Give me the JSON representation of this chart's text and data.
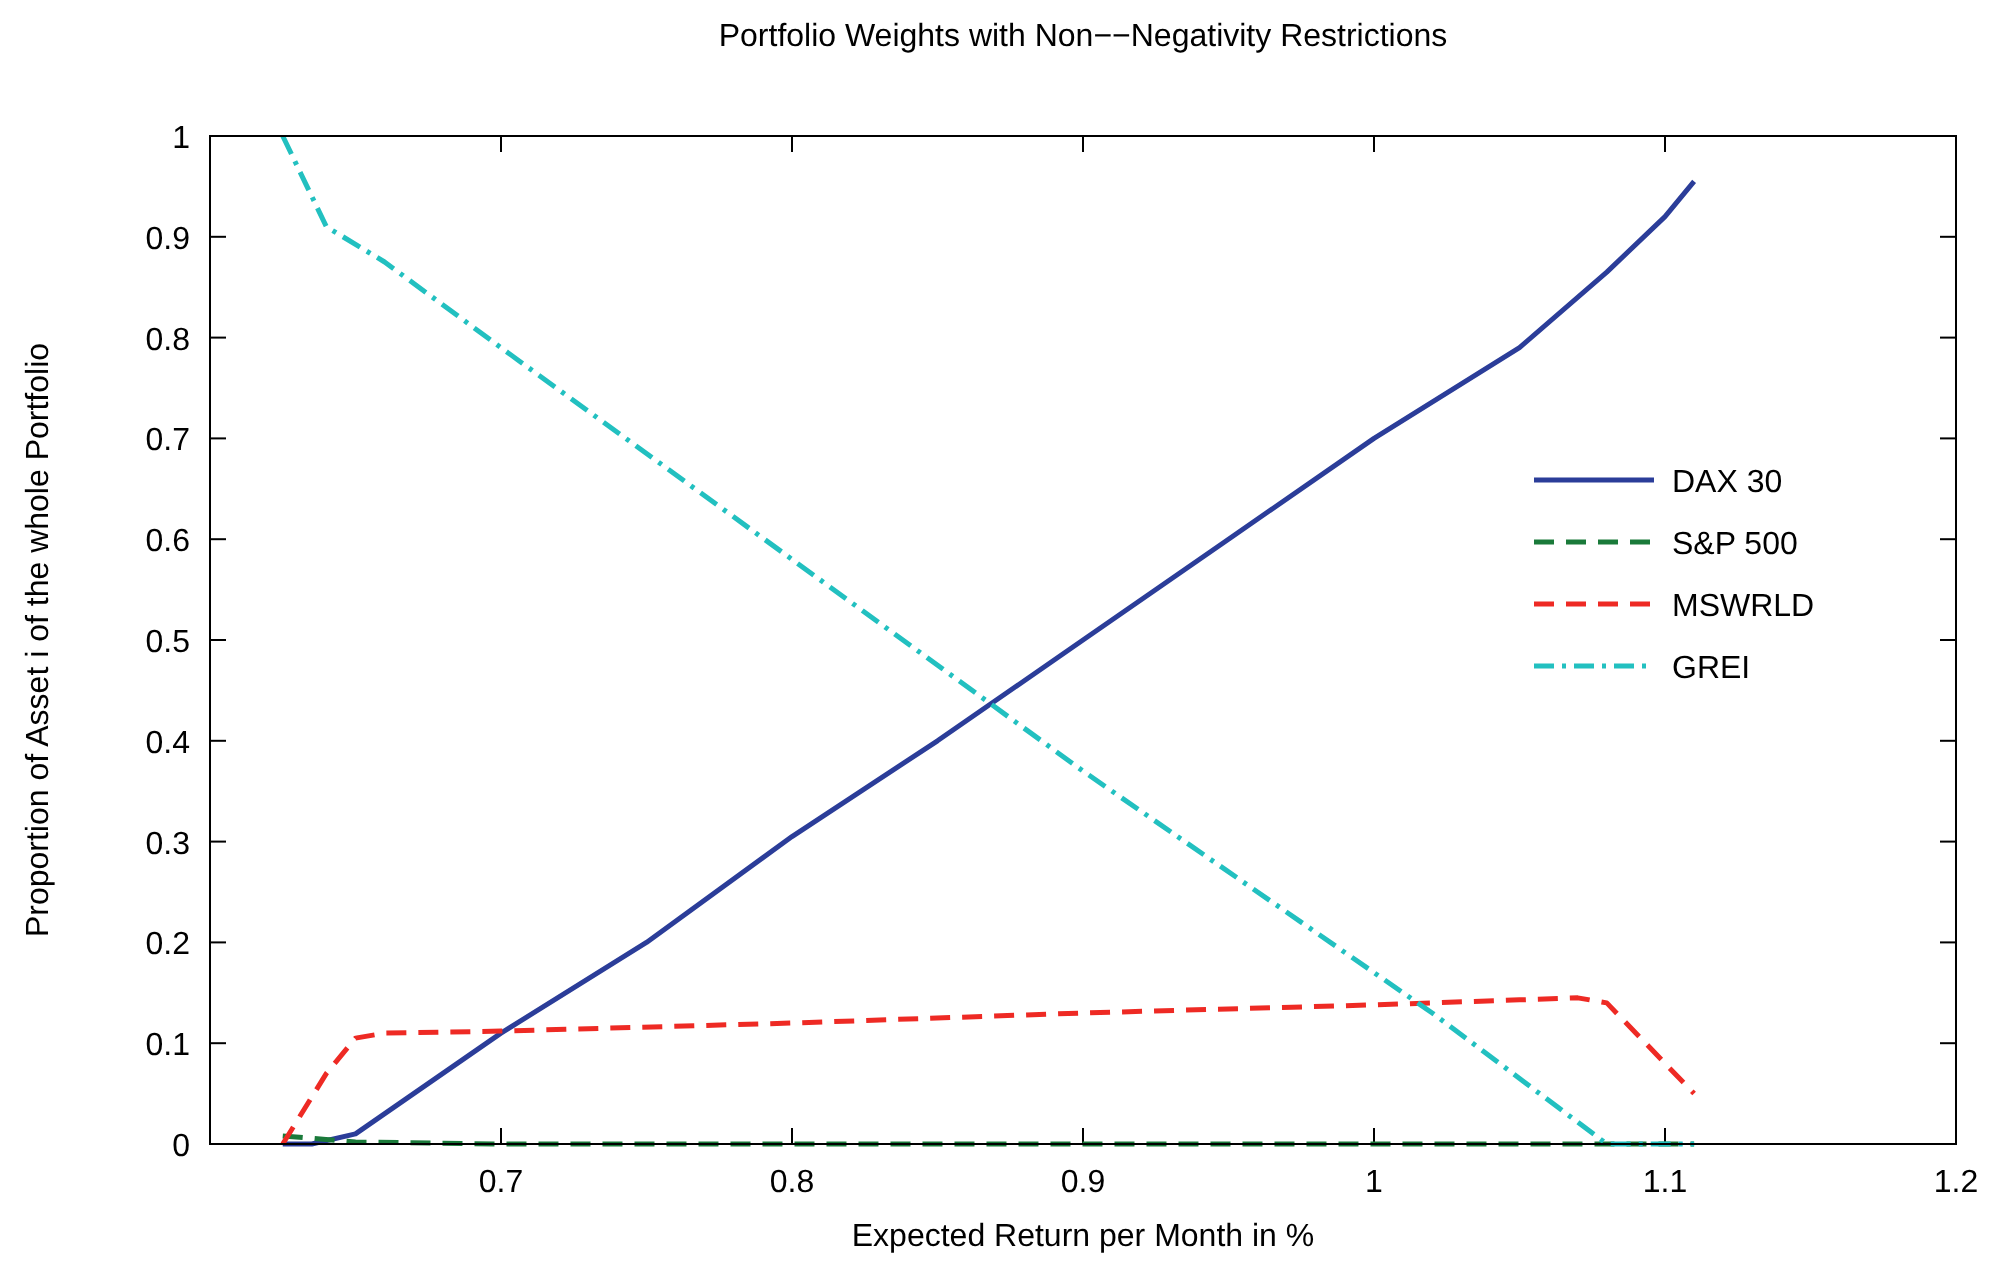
{
  "chart_data": {
    "type": "line",
    "title": "Portfolio Weights with Non−−Negativity Restrictions",
    "xlabel": "Expected Return per Month in %",
    "ylabel": "Proportion of Asset i of the whole Portfolio",
    "xlim": [
      0.6,
      1.2
    ],
    "xticks": [
      0.7,
      0.8,
      0.9,
      1,
      1.1,
      1.2
    ],
    "ylim": [
      0,
      1
    ],
    "yticks": [
      0,
      0.1,
      0.2,
      0.3,
      0.4,
      0.5,
      0.6,
      0.7,
      0.8,
      0.9,
      1
    ],
    "grid": false,
    "legend": "right",
    "series": [
      {
        "name": "DAX 30",
        "color": "#2b3d99",
        "line_style": "solid",
        "x": [
          0.625,
          0.635,
          0.65,
          0.7,
          0.75,
          0.8,
          0.85,
          0.9,
          0.95,
          1.0,
          1.05,
          1.08,
          1.1,
          1.11
        ],
        "values": [
          0,
          0,
          0.01,
          0.11,
          0.2,
          0.305,
          0.4,
          0.5,
          0.6,
          0.7,
          0.79,
          0.865,
          0.92,
          0.955
        ]
      },
      {
        "name": "S&P 500",
        "color": "#1a7a3a",
        "line_style": "dashed",
        "x": [
          0.625,
          0.65,
          0.7,
          0.8,
          0.9,
          1.0,
          1.11
        ],
        "values": [
          0.008,
          0.002,
          0,
          0,
          0,
          0,
          0
        ]
      },
      {
        "name": "MSWRLD",
        "color": "#ee2a24",
        "line_style": "dashed",
        "x": [
          0.625,
          0.64,
          0.65,
          0.66,
          0.7,
          0.8,
          0.9,
          1.0,
          1.05,
          1.07,
          1.08,
          1.11
        ],
        "values": [
          0,
          0.07,
          0.105,
          0.11,
          0.112,
          0.12,
          0.13,
          0.138,
          0.143,
          0.145,
          0.14,
          0.05
        ]
      },
      {
        "name": "GREI",
        "color": "#22c0c0",
        "line_style": "dashdot",
        "x": [
          0.625,
          0.64,
          0.66,
          0.7,
          0.8,
          0.9,
          1.0,
          1.02,
          1.08,
          1.11
        ],
        "values": [
          1.0,
          0.91,
          0.875,
          0.79,
          0.58,
          0.37,
          0.17,
          0.13,
          0,
          0
        ]
      }
    ]
  }
}
